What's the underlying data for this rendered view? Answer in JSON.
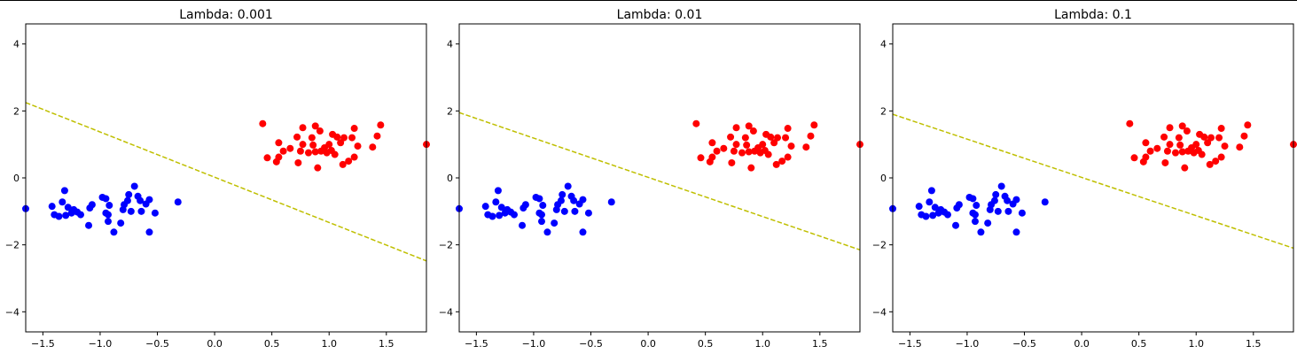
{
  "chart_data": [
    {
      "type": "scatter",
      "title": "Lambda: 0.001",
      "xlim": [
        -1.65,
        1.85
      ],
      "ylim": [
        -4.6,
        4.6
      ],
      "xticks": [
        -1.5,
        -1.0,
        -0.5,
        0.0,
        0.5,
        1.0,
        1.5
      ],
      "xtick_labels": [
        "−1.5",
        "−1.0",
        "−0.5",
        "0.0",
        "0.5",
        "1.0",
        "1.5"
      ],
      "yticks": [
        -4,
        -2,
        0,
        2,
        4
      ],
      "ytick_labels": [
        "−4",
        "−2",
        "0",
        "2",
        "4"
      ],
      "grid": false,
      "decision_boundary": {
        "style": "dashed",
        "color": "#bfbf00",
        "x": [
          -1.65,
          1.85
        ],
        "y": [
          2.25,
          -2.48
        ]
      },
      "series": [
        {
          "color": "#0000ff",
          "points": [
            [
              -1.65,
              -0.92
            ],
            [
              -1.42,
              -0.85
            ],
            [
              -1.4,
              -1.1
            ],
            [
              -1.36,
              -1.15
            ],
            [
              -1.33,
              -0.72
            ],
            [
              -1.31,
              -0.38
            ],
            [
              -1.3,
              -1.12
            ],
            [
              -1.28,
              -0.88
            ],
            [
              -1.25,
              -1.05
            ],
            [
              -1.23,
              -0.95
            ],
            [
              -1.2,
              -1.02
            ],
            [
              -1.17,
              -1.1
            ],
            [
              -1.1,
              -1.42
            ],
            [
              -1.09,
              -0.9
            ],
            [
              -1.07,
              -0.8
            ],
            [
              -0.98,
              -0.58
            ],
            [
              -0.95,
              -0.62
            ],
            [
              -0.95,
              -1.05
            ],
            [
              -0.93,
              -1.1
            ],
            [
              -0.93,
              -1.3
            ],
            [
              -0.92,
              -0.82
            ],
            [
              -0.88,
              -1.62
            ],
            [
              -0.82,
              -1.35
            ],
            [
              -0.8,
              -0.95
            ],
            [
              -0.79,
              -0.8
            ],
            [
              -0.76,
              -0.68
            ],
            [
              -0.75,
              -0.5
            ],
            [
              -0.73,
              -1.0
            ],
            [
              -0.7,
              -0.25
            ],
            [
              -0.67,
              -0.55
            ],
            [
              -0.65,
              -0.68
            ],
            [
              -0.64,
              -1.0
            ],
            [
              -0.6,
              -0.78
            ],
            [
              -0.57,
              -1.62
            ],
            [
              -0.57,
              -0.65
            ],
            [
              -0.52,
              -1.05
            ],
            [
              -0.32,
              -0.72
            ]
          ]
        },
        {
          "color": "#ff0000",
          "points": [
            [
              0.42,
              1.62
            ],
            [
              0.46,
              0.6
            ],
            [
              0.54,
              0.48
            ],
            [
              0.56,
              0.62
            ],
            [
              0.56,
              1.05
            ],
            [
              0.6,
              0.8
            ],
            [
              0.66,
              0.88
            ],
            [
              0.72,
              1.22
            ],
            [
              0.73,
              0.45
            ],
            [
              0.75,
              0.8
            ],
            [
              0.77,
              1.0
            ],
            [
              0.77,
              1.5
            ],
            [
              0.82,
              0.75
            ],
            [
              0.85,
              1.2
            ],
            [
              0.86,
              0.98
            ],
            [
              0.88,
              0.78
            ],
            [
              0.88,
              1.55
            ],
            [
              0.9,
              0.3
            ],
            [
              0.92,
              1.4
            ],
            [
              0.93,
              0.8
            ],
            [
              0.96,
              0.9
            ],
            [
              0.98,
              0.75
            ],
            [
              1.0,
              1.0
            ],
            [
              1.02,
              0.82
            ],
            [
              1.03,
              1.3
            ],
            [
              1.05,
              0.7
            ],
            [
              1.07,
              1.22
            ],
            [
              1.1,
              1.05
            ],
            [
              1.12,
              0.4
            ],
            [
              1.13,
              1.2
            ],
            [
              1.17,
              0.5
            ],
            [
              1.2,
              1.2
            ],
            [
              1.22,
              1.48
            ],
            [
              1.22,
              0.62
            ],
            [
              1.25,
              0.95
            ],
            [
              1.38,
              0.92
            ],
            [
              1.42,
              1.25
            ],
            [
              1.45,
              1.58
            ],
            [
              1.85,
              1.0
            ]
          ]
        }
      ]
    },
    {
      "type": "scatter",
      "title": "Lambda: 0.01",
      "xlim": [
        -1.65,
        1.85
      ],
      "ylim": [
        -4.6,
        4.6
      ],
      "xticks": [
        -1.5,
        -1.0,
        -0.5,
        0.0,
        0.5,
        1.0,
        1.5
      ],
      "xtick_labels": [
        "−1.5",
        "−1.0",
        "−0.5",
        "0.0",
        "0.5",
        "1.0",
        "1.5"
      ],
      "yticks": [
        -4,
        -2,
        0,
        2,
        4
      ],
      "ytick_labels": [
        "−4",
        "−2",
        "0",
        "2",
        "4"
      ],
      "grid": false,
      "decision_boundary": {
        "style": "dashed",
        "color": "#bfbf00",
        "x": [
          -1.65,
          1.85
        ],
        "y": [
          1.95,
          -2.15
        ]
      },
      "series": [
        {
          "color": "#0000ff",
          "points": [
            [
              -1.65,
              -0.92
            ],
            [
              -1.42,
              -0.85
            ],
            [
              -1.4,
              -1.1
            ],
            [
              -1.36,
              -1.15
            ],
            [
              -1.33,
              -0.72
            ],
            [
              -1.31,
              -0.38
            ],
            [
              -1.3,
              -1.12
            ],
            [
              -1.28,
              -0.88
            ],
            [
              -1.25,
              -1.05
            ],
            [
              -1.23,
              -0.95
            ],
            [
              -1.2,
              -1.02
            ],
            [
              -1.17,
              -1.1
            ],
            [
              -1.1,
              -1.42
            ],
            [
              -1.09,
              -0.9
            ],
            [
              -1.07,
              -0.8
            ],
            [
              -0.98,
              -0.58
            ],
            [
              -0.95,
              -0.62
            ],
            [
              -0.95,
              -1.05
            ],
            [
              -0.93,
              -1.1
            ],
            [
              -0.93,
              -1.3
            ],
            [
              -0.92,
              -0.82
            ],
            [
              -0.88,
              -1.62
            ],
            [
              -0.82,
              -1.35
            ],
            [
              -0.8,
              -0.95
            ],
            [
              -0.79,
              -0.8
            ],
            [
              -0.76,
              -0.68
            ],
            [
              -0.75,
              -0.5
            ],
            [
              -0.73,
              -1.0
            ],
            [
              -0.7,
              -0.25
            ],
            [
              -0.67,
              -0.55
            ],
            [
              -0.65,
              -0.68
            ],
            [
              -0.64,
              -1.0
            ],
            [
              -0.6,
              -0.78
            ],
            [
              -0.57,
              -1.62
            ],
            [
              -0.57,
              -0.65
            ],
            [
              -0.52,
              -1.05
            ],
            [
              -0.32,
              -0.72
            ]
          ]
        },
        {
          "color": "#ff0000",
          "points": [
            [
              0.42,
              1.62
            ],
            [
              0.46,
              0.6
            ],
            [
              0.54,
              0.48
            ],
            [
              0.56,
              0.62
            ],
            [
              0.56,
              1.05
            ],
            [
              0.6,
              0.8
            ],
            [
              0.66,
              0.88
            ],
            [
              0.72,
              1.22
            ],
            [
              0.73,
              0.45
            ],
            [
              0.75,
              0.8
            ],
            [
              0.77,
              1.0
            ],
            [
              0.77,
              1.5
            ],
            [
              0.82,
              0.75
            ],
            [
              0.85,
              1.2
            ],
            [
              0.86,
              0.98
            ],
            [
              0.88,
              0.78
            ],
            [
              0.88,
              1.55
            ],
            [
              0.9,
              0.3
            ],
            [
              0.92,
              1.4
            ],
            [
              0.93,
              0.8
            ],
            [
              0.96,
              0.9
            ],
            [
              0.98,
              0.75
            ],
            [
              1.0,
              1.0
            ],
            [
              1.02,
              0.82
            ],
            [
              1.03,
              1.3
            ],
            [
              1.05,
              0.7
            ],
            [
              1.07,
              1.22
            ],
            [
              1.1,
              1.05
            ],
            [
              1.12,
              0.4
            ],
            [
              1.13,
              1.2
            ],
            [
              1.17,
              0.5
            ],
            [
              1.2,
              1.2
            ],
            [
              1.22,
              1.48
            ],
            [
              1.22,
              0.62
            ],
            [
              1.25,
              0.95
            ],
            [
              1.38,
              0.92
            ],
            [
              1.42,
              1.25
            ],
            [
              1.45,
              1.58
            ],
            [
              1.85,
              1.0
            ]
          ]
        }
      ]
    },
    {
      "type": "scatter",
      "title": "Lambda: 0.1",
      "xlim": [
        -1.65,
        1.85
      ],
      "ylim": [
        -4.6,
        4.6
      ],
      "xticks": [
        -1.5,
        -1.0,
        -0.5,
        0.0,
        0.5,
        1.0,
        1.5
      ],
      "xtick_labels": [
        "−1.5",
        "−1.0",
        "−0.5",
        "0.0",
        "0.5",
        "1.0",
        "1.5"
      ],
      "yticks": [
        -4,
        -2,
        0,
        2,
        4
      ],
      "ytick_labels": [
        "−4",
        "−2",
        "0",
        "2",
        "4"
      ],
      "grid": false,
      "decision_boundary": {
        "style": "dashed",
        "color": "#bfbf00",
        "x": [
          -1.65,
          1.85
        ],
        "y": [
          1.9,
          -2.1
        ]
      },
      "series": [
        {
          "color": "#0000ff",
          "points": [
            [
              -1.65,
              -0.92
            ],
            [
              -1.42,
              -0.85
            ],
            [
              -1.4,
              -1.1
            ],
            [
              -1.36,
              -1.15
            ],
            [
              -1.33,
              -0.72
            ],
            [
              -1.31,
              -0.38
            ],
            [
              -1.3,
              -1.12
            ],
            [
              -1.28,
              -0.88
            ],
            [
              -1.25,
              -1.05
            ],
            [
              -1.23,
              -0.95
            ],
            [
              -1.2,
              -1.02
            ],
            [
              -1.17,
              -1.1
            ],
            [
              -1.1,
              -1.42
            ],
            [
              -1.09,
              -0.9
            ],
            [
              -1.07,
              -0.8
            ],
            [
              -0.98,
              -0.58
            ],
            [
              -0.95,
              -0.62
            ],
            [
              -0.95,
              -1.05
            ],
            [
              -0.93,
              -1.1
            ],
            [
              -0.93,
              -1.3
            ],
            [
              -0.92,
              -0.82
            ],
            [
              -0.88,
              -1.62
            ],
            [
              -0.82,
              -1.35
            ],
            [
              -0.8,
              -0.95
            ],
            [
              -0.79,
              -0.8
            ],
            [
              -0.76,
              -0.68
            ],
            [
              -0.75,
              -0.5
            ],
            [
              -0.73,
              -1.0
            ],
            [
              -0.7,
              -0.25
            ],
            [
              -0.67,
              -0.55
            ],
            [
              -0.65,
              -0.68
            ],
            [
              -0.64,
              -1.0
            ],
            [
              -0.6,
              -0.78
            ],
            [
              -0.57,
              -1.62
            ],
            [
              -0.57,
              -0.65
            ],
            [
              -0.52,
              -1.05
            ],
            [
              -0.32,
              -0.72
            ]
          ]
        },
        {
          "color": "#ff0000",
          "points": [
            [
              0.42,
              1.62
            ],
            [
              0.46,
              0.6
            ],
            [
              0.54,
              0.48
            ],
            [
              0.56,
              0.62
            ],
            [
              0.56,
              1.05
            ],
            [
              0.6,
              0.8
            ],
            [
              0.66,
              0.88
            ],
            [
              0.72,
              1.22
            ],
            [
              0.73,
              0.45
            ],
            [
              0.75,
              0.8
            ],
            [
              0.77,
              1.0
            ],
            [
              0.77,
              1.5
            ],
            [
              0.82,
              0.75
            ],
            [
              0.85,
              1.2
            ],
            [
              0.86,
              0.98
            ],
            [
              0.88,
              0.78
            ],
            [
              0.88,
              1.55
            ],
            [
              0.9,
              0.3
            ],
            [
              0.92,
              1.4
            ],
            [
              0.93,
              0.8
            ],
            [
              0.96,
              0.9
            ],
            [
              0.98,
              0.75
            ],
            [
              1.0,
              1.0
            ],
            [
              1.02,
              0.82
            ],
            [
              1.03,
              1.3
            ],
            [
              1.05,
              0.7
            ],
            [
              1.07,
              1.22
            ],
            [
              1.1,
              1.05
            ],
            [
              1.12,
              0.4
            ],
            [
              1.13,
              1.2
            ],
            [
              1.17,
              0.5
            ],
            [
              1.2,
              1.2
            ],
            [
              1.22,
              1.48
            ],
            [
              1.22,
              0.62
            ],
            [
              1.25,
              0.95
            ],
            [
              1.38,
              0.92
            ],
            [
              1.42,
              1.25
            ],
            [
              1.45,
              1.58
            ],
            [
              1.85,
              1.0
            ]
          ]
        }
      ]
    }
  ]
}
